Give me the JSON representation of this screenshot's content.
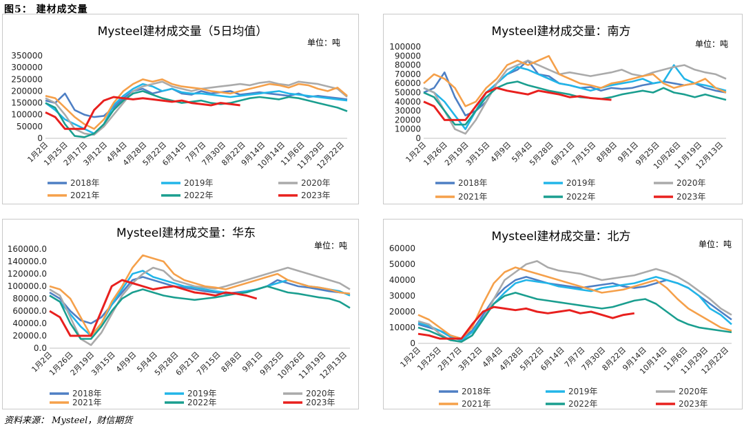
{
  "caption": "图5： 建材成交量",
  "source": "资料来源： Mysteel，财信期货",
  "colors": {
    "2018": "#4e7fc4",
    "2019": "#22b5e8",
    "2020": "#aaaaaa",
    "2021": "#f5a04a",
    "2022": "#1a9e8f",
    "2023": "#e8201e"
  },
  "chart_data": [
    {
      "type": "line",
      "title": "Mysteel建材成交量（5日均值）",
      "unit": "单位：吨",
      "ylim": [
        0,
        350000
      ],
      "yticks": [
        "0",
        "50000",
        "100000",
        "150000",
        "200000",
        "250000",
        "300000",
        "350000"
      ],
      "xticks": [
        "1月2日",
        "1月25日",
        "2月17日",
        "3月12日",
        "4月4日",
        "4月28日",
        "5月22日",
        "6月14日",
        "7月7日",
        "7月30日",
        "8月22日",
        "9月14日",
        "10月14日",
        "11月6日",
        "11月29日",
        "12月22日"
      ],
      "legend": [
        "2018年",
        "2019年",
        "2020年",
        "2021年",
        "2022年",
        "2023年"
      ],
      "series": [
        {
          "name": "2018年",
          "key": "2018",
          "values": [
            160000,
            150000,
            190000,
            120000,
            100000,
            90000,
            95000,
            130000,
            170000,
            200000,
            210000,
            190000,
            200000,
            210000,
            190000,
            185000,
            200000,
            190000,
            195000,
            200000,
            185000,
            190000,
            195000,
            190000,
            185000,
            180000,
            190000,
            175000,
            180000,
            175000,
            170000,
            165000
          ]
        },
        {
          "name": "2019年",
          "key": "2019",
          "values": [
            150000,
            120000,
            80000,
            60000,
            40000,
            20000,
            60000,
            140000,
            180000,
            210000,
            230000,
            220000,
            200000,
            210000,
            195000,
            190000,
            190000,
            185000,
            180000,
            175000,
            180000,
            185000,
            190000,
            195000,
            200000,
            190000,
            185000,
            180000,
            175000,
            170000,
            165000,
            160000
          ]
        },
        {
          "name": "2020年",
          "key": "2020",
          "values": [
            170000,
            150000,
            100000,
            40000,
            20000,
            15000,
            50000,
            100000,
            150000,
            200000,
            220000,
            230000,
            240000,
            220000,
            210000,
            200000,
            210000,
            215000,
            220000,
            225000,
            230000,
            225000,
            235000,
            240000,
            230000,
            225000,
            240000,
            235000,
            230000,
            220000,
            210000,
            175000
          ]
        },
        {
          "name": "2021年",
          "key": "2021",
          "values": [
            180000,
            170000,
            130000,
            90000,
            60000,
            40000,
            80000,
            150000,
            200000,
            230000,
            250000,
            240000,
            250000,
            230000,
            220000,
            215000,
            210000,
            200000,
            195000,
            190000,
            200000,
            210000,
            220000,
            230000,
            225000,
            215000,
            230000,
            225000,
            210000,
            200000,
            215000,
            180000
          ]
        },
        {
          "name": "2022年",
          "key": "2022",
          "values": [
            150000,
            130000,
            60000,
            10000,
            5000,
            20000,
            60000,
            120000,
            160000,
            190000,
            200000,
            185000,
            170000,
            160000,
            150000,
            155000,
            160000,
            150000,
            145000,
            150000,
            160000,
            170000,
            175000,
            170000,
            165000,
            175000,
            170000,
            160000,
            150000,
            140000,
            130000,
            115000
          ]
        },
        {
          "name": "2023年",
          "key": "2023",
          "values": [
            110000,
            90000,
            40000,
            40000,
            40000,
            120000,
            160000,
            175000,
            170000,
            165000,
            170000,
            165000,
            160000,
            155000,
            160000,
            150000,
            145000,
            140000,
            150000,
            145000,
            140000
          ]
        }
      ]
    },
    {
      "type": "line",
      "title": "Mysteel建材成交量：南方",
      "unit": "单位：吨",
      "ylim": [
        0,
        100000
      ],
      "yticks": [
        "0",
        "10000",
        "20000",
        "30000",
        "40000",
        "50000",
        "60000",
        "70000",
        "80000",
        "90000",
        "100000"
      ],
      "xticks": [
        "1月2日",
        "1月26日",
        "2月19日",
        "3月15日",
        "4月9日",
        "5月4日",
        "5月28日",
        "6月21日",
        "7月15日",
        "8月8日",
        "9月1日",
        "9月25日",
        "10月26日",
        "11月19日",
        "12月13日"
      ],
      "legend": [
        "2018年",
        "2019年",
        "2020年",
        "2021年",
        "2022年",
        "2023年"
      ],
      "series": [
        {
          "name": "2018年",
          "key": "2018",
          "values": [
            50000,
            55000,
            72000,
            45000,
            25000,
            30000,
            40000,
            60000,
            70000,
            75000,
            85000,
            70000,
            68000,
            60000,
            58000,
            55000,
            56000,
            52000,
            55000,
            54000,
            55000,
            58000,
            60000,
            62000,
            60000,
            58000,
            60000,
            55000,
            52000,
            50000
          ]
        },
        {
          "name": "2019年",
          "key": "2019",
          "values": [
            55000,
            50000,
            40000,
            25000,
            10000,
            30000,
            50000,
            60000,
            70000,
            78000,
            75000,
            70000,
            65000,
            60000,
            58000,
            55000,
            52000,
            55000,
            58000,
            60000,
            62000,
            65000,
            60000,
            62000,
            80000,
            65000,
            60000,
            58000,
            55000,
            52000
          ]
        },
        {
          "name": "2020年",
          "key": "2020",
          "values": [
            55000,
            50000,
            30000,
            10000,
            5000,
            20000,
            40000,
            60000,
            75000,
            80000,
            85000,
            80000,
            75000,
            70000,
            72000,
            70000,
            68000,
            70000,
            72000,
            75000,
            70000,
            68000,
            72000,
            75000,
            78000,
            80000,
            75000,
            72000,
            70000,
            65000
          ]
        },
        {
          "name": "2021年",
          "key": "2021",
          "values": [
            60000,
            70000,
            65000,
            55000,
            35000,
            40000,
            55000,
            65000,
            80000,
            85000,
            80000,
            85000,
            90000,
            70000,
            65000,
            60000,
            58000,
            55000,
            60000,
            62000,
            65000,
            68000,
            70000,
            60000,
            55000,
            58000,
            60000,
            65000,
            55000,
            50000
          ]
        },
        {
          "name": "2022年",
          "key": "2022",
          "values": [
            50000,
            45000,
            30000,
            15000,
            15000,
            30000,
            45000,
            55000,
            60000,
            62000,
            58000,
            55000,
            52000,
            50000,
            48000,
            45000,
            44000,
            43000,
            45000,
            48000,
            50000,
            52000,
            50000,
            55000,
            50000,
            48000,
            45000,
            48000,
            45000,
            42000
          ]
        },
        {
          "name": "2023年",
          "key": "2023",
          "values": [
            40000,
            35000,
            20000,
            20000,
            20000,
            35000,
            50000,
            55000,
            52000,
            50000,
            48000,
            52000,
            50000,
            48000,
            45000,
            46000,
            44000,
            43000,
            42000
          ]
        }
      ]
    },
    {
      "type": "line",
      "title": "Mysteel建材成交量：华东",
      "unit": "单位：吨",
      "ylim": [
        0,
        160000
      ],
      "yticks": [
        "0.0",
        "20000.0",
        "40000.0",
        "60000.0",
        "80000.0",
        "100000.0",
        "120000.0",
        "140000.0",
        "160000.0"
      ],
      "xticks": [
        "1月2日",
        "1月26日",
        "2月19日",
        "3月15日",
        "4月9日",
        "5月4日",
        "5月28日",
        "6月21日",
        "7月15日",
        "8月8日",
        "9月1日",
        "9月25日",
        "10月26日",
        "11月19日",
        "12月13日"
      ],
      "legend": [
        "2018年",
        "2019年",
        "2020年",
        "2021年",
        "2022年",
        "2023年"
      ],
      "series": [
        {
          "name": "2018年",
          "key": "2018",
          "values": [
            90000,
            80000,
            60000,
            45000,
            40000,
            50000,
            70000,
            90000,
            110000,
            115000,
            110000,
            105000,
            100000,
            98000,
            95000,
            92000,
            90000,
            88000,
            90000,
            92000,
            95000,
            100000,
            110000,
            105000,
            100000,
            98000,
            95000,
            92000,
            90000,
            88000
          ]
        },
        {
          "name": "2019年",
          "key": "2019",
          "values": [
            85000,
            75000,
            55000,
            35000,
            20000,
            40000,
            70000,
            95000,
            120000,
            125000,
            115000,
            110000,
            105000,
            100000,
            98000,
            95000,
            92000,
            90000,
            88000,
            92000,
            95000,
            100000,
            105000,
            110000,
            105000,
            100000,
            98000,
            95000,
            92000,
            85000
          ]
        },
        {
          "name": "2020年",
          "key": "2020",
          "values": [
            95000,
            85000,
            50000,
            15000,
            5000,
            25000,
            55000,
            85000,
            105000,
            120000,
            130000,
            125000,
            110000,
            105000,
            100000,
            98000,
            96000,
            100000,
            105000,
            110000,
            115000,
            120000,
            125000,
            130000,
            125000,
            120000,
            115000,
            110000,
            105000,
            95000
          ]
        },
        {
          "name": "2021年",
          "key": "2021",
          "values": [
            100000,
            95000,
            80000,
            50000,
            20000,
            40000,
            75000,
            100000,
            130000,
            150000,
            145000,
            140000,
            120000,
            110000,
            105000,
            100000,
            98000,
            95000,
            100000,
            105000,
            110000,
            115000,
            120000,
            110000,
            105000,
            100000,
            98000,
            95000,
            90000,
            88000
          ]
        },
        {
          "name": "2022年",
          "key": "2022",
          "values": [
            85000,
            75000,
            40000,
            15000,
            15000,
            35000,
            60000,
            80000,
            90000,
            95000,
            90000,
            85000,
            82000,
            80000,
            78000,
            80000,
            82000,
            85000,
            88000,
            90000,
            95000,
            100000,
            95000,
            90000,
            88000,
            85000,
            82000,
            80000,
            75000,
            65000
          ]
        },
        {
          "name": "2023年",
          "key": "2023",
          "values": [
            60000,
            50000,
            20000,
            20000,
            20000,
            60000,
            100000,
            110000,
            105000,
            100000,
            95000,
            98000,
            100000,
            95000,
            90000,
            88000,
            85000,
            90000,
            88000,
            85000,
            80000
          ]
        }
      ]
    },
    {
      "type": "line",
      "title": "Mysteel建材成交量：北方",
      "unit": "单位：吨",
      "ylim": [
        0,
        60000
      ],
      "yticks": [
        "0",
        "10000",
        "20000",
        "30000",
        "40000",
        "50000",
        "60000"
      ],
      "xticks": [
        "1月2日",
        "1月25日",
        "2月17日",
        "3月12日",
        "4月4日",
        "4月28日",
        "5月22日",
        "6月14日",
        "7月7日",
        "7月30日",
        "8月22日",
        "9月14日",
        "10月14日",
        "11月6日",
        "11月29日",
        "12月22日"
      ],
      "legend": [
        "2018年",
        "2019年",
        "2020年",
        "2021年",
        "2022年",
        "2023年"
      ],
      "series": [
        {
          "name": "2018年",
          "key": "2018",
          "values": [
            12000,
            10000,
            8000,
            5000,
            3000,
            8000,
            18000,
            28000,
            35000,
            40000,
            42000,
            40000,
            38000,
            37000,
            36000,
            35000,
            36000,
            37000,
            38000,
            36000,
            35000,
            36000,
            38000,
            40000,
            38000,
            35000,
            30000,
            25000,
            20000,
            15000
          ]
        },
        {
          "name": "2019年",
          "key": "2019",
          "values": [
            13000,
            11000,
            8000,
            4000,
            2000,
            7000,
            16000,
            25000,
            32000,
            38000,
            40000,
            39000,
            38000,
            36000,
            35000,
            34000,
            33000,
            35000,
            36000,
            37000,
            38000,
            40000,
            42000,
            40000,
            38000,
            35000,
            30000,
            22000,
            18000,
            12000
          ]
        },
        {
          "name": "2020年",
          "key": "2020",
          "values": [
            14000,
            12000,
            6000,
            2000,
            1000,
            5000,
            15000,
            28000,
            40000,
            45000,
            50000,
            52000,
            48000,
            46000,
            45000,
            44000,
            42000,
            40000,
            41000,
            42000,
            43000,
            45000,
            47000,
            45000,
            42000,
            38000,
            33000,
            28000,
            22000,
            18000
          ]
        },
        {
          "name": "2021年",
          "key": "2021",
          "values": [
            18000,
            15000,
            10000,
            5000,
            3000,
            10000,
            25000,
            38000,
            45000,
            48000,
            46000,
            44000,
            42000,
            40000,
            38000,
            36000,
            34000,
            32000,
            33000,
            34000,
            36000,
            38000,
            40000,
            35000,
            28000,
            22000,
            18000,
            14000,
            10000,
            8000
          ]
        },
        {
          "name": "2022年",
          "key": "2022",
          "values": [
            10000,
            8000,
            5000,
            2000,
            1000,
            5000,
            15000,
            25000,
            30000,
            32000,
            30000,
            28000,
            27000,
            26000,
            25000,
            24000,
            23000,
            22000,
            23000,
            25000,
            27000,
            28000,
            25000,
            20000,
            15000,
            12000,
            10000,
            9000,
            8000,
            7000
          ]
        },
        {
          "name": "2023年",
          "key": "2023",
          "values": [
            6000,
            5000,
            3000,
            3000,
            3000,
            12000,
            20000,
            23000,
            22000,
            21000,
            22000,
            20000,
            19000,
            20000,
            21000,
            19000,
            20000,
            18000,
            16000,
            18000,
            19000
          ]
        }
      ]
    }
  ]
}
